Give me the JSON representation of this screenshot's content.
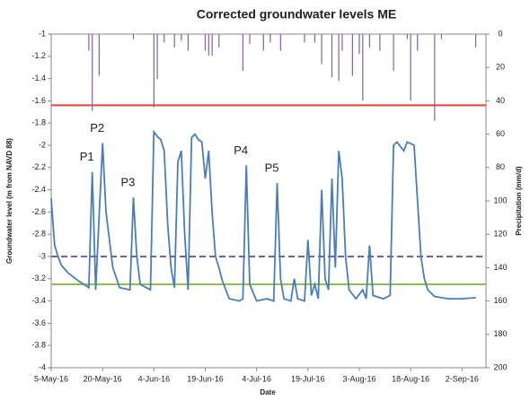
{
  "chart_data": {
    "type": "line",
    "title": "Corrected groundwater levels ME",
    "xlabel": "Date",
    "ylabel": "Groundwater level (m from NAVD 88)",
    "y2label": "Precipitation (mm/d)",
    "xlim": [
      "2016-05-05",
      "2016-09-09"
    ],
    "xticks": [
      {
        "value": "2016-05-05",
        "label": "5-May-16"
      },
      {
        "value": "2016-05-20",
        "label": "20-May-16"
      },
      {
        "value": "2016-06-04",
        "label": "4-Jun-16"
      },
      {
        "value": "2016-06-19",
        "label": "19-Jun-16"
      },
      {
        "value": "2016-07-04",
        "label": "4-Jul-16"
      },
      {
        "value": "2016-07-19",
        "label": "19-Jul-16"
      },
      {
        "value": "2016-08-03",
        "label": "3-Aug-16"
      },
      {
        "value": "2016-08-18",
        "label": "18-Aug-16"
      },
      {
        "value": "2016-09-02",
        "label": "2-Sep-16"
      }
    ],
    "ylim": [
      -4,
      -1
    ],
    "yticks": [
      -1,
      -1.2,
      -1.4,
      -1.6,
      -1.8,
      -2,
      -2.2,
      -2.4,
      -2.6,
      -2.8,
      -3,
      -3.2,
      -3.4,
      -3.6,
      -3.8,
      -4
    ],
    "y2lim": [
      0,
      200
    ],
    "y2ticks": [
      0,
      20,
      40,
      60,
      80,
      100,
      120,
      140,
      160,
      180,
      200
    ],
    "y2_inverted": true,
    "series": [
      {
        "type": "line",
        "color": "#4a7ebb",
        "x": [
          "2016-05-05",
          "2016-05-06",
          "2016-05-07",
          "2016-05-08",
          "2016-05-10",
          "2016-05-13",
          "2016-05-16",
          "2016-05-17",
          "2016-05-18",
          "2016-05-20",
          "2016-05-21",
          "2016-05-23",
          "2016-05-25",
          "2016-05-28",
          "2016-05-29",
          "2016-05-30",
          "2016-05-31",
          "2016-06-03",
          "2016-06-04",
          "2016-06-05",
          "2016-06-06",
          "2016-06-07",
          "2016-06-08",
          "2016-06-09",
          "2016-06-10",
          "2016-06-11",
          "2016-06-12",
          "2016-06-13",
          "2016-06-14",
          "2016-06-15",
          "2016-06-16",
          "2016-06-17",
          "2016-06-18",
          "2016-06-19",
          "2016-06-20",
          "2016-06-21",
          "2016-06-22",
          "2016-06-23",
          "2016-06-24",
          "2016-06-26",
          "2016-06-29",
          "2016-06-30",
          "2016-07-01",
          "2016-07-02",
          "2016-07-04",
          "2016-07-07",
          "2016-07-09",
          "2016-07-10",
          "2016-07-11",
          "2016-07-12",
          "2016-07-14",
          "2016-07-15",
          "2016-07-16",
          "2016-07-18",
          "2016-07-19",
          "2016-07-20",
          "2016-07-21",
          "2016-07-22",
          "2016-07-23",
          "2016-07-24",
          "2016-07-25",
          "2016-07-26",
          "2016-07-27",
          "2016-07-28",
          "2016-07-29",
          "2016-07-30",
          "2016-07-31",
          "2016-08-02",
          "2016-08-04",
          "2016-08-05",
          "2016-08-06",
          "2016-08-07",
          "2016-08-10",
          "2016-08-12",
          "2016-08-13",
          "2016-08-14",
          "2016-08-16",
          "2016-08-17",
          "2016-08-19",
          "2016-08-20",
          "2016-08-21",
          "2016-08-22",
          "2016-08-23",
          "2016-08-25",
          "2016-08-29",
          "2016-09-02",
          "2016-09-06"
        ],
        "values": [
          -2.48,
          -2.9,
          -3.0,
          -3.08,
          -3.15,
          -3.22,
          -3.28,
          -2.24,
          -3.3,
          -1.98,
          -2.6,
          -3.1,
          -3.28,
          -3.3,
          -2.47,
          -3.0,
          -3.25,
          -3.3,
          -1.88,
          -1.92,
          -1.95,
          -2.05,
          -2.7,
          -3.1,
          -3.28,
          -2.15,
          -2.05,
          -2.8,
          -3.3,
          -1.93,
          -1.9,
          -1.95,
          -1.97,
          -2.3,
          -2.05,
          -2.6,
          -3.0,
          -3.1,
          -3.22,
          -3.38,
          -3.4,
          -3.38,
          -2.18,
          -3.25,
          -3.4,
          -3.38,
          -3.4,
          -2.34,
          -3.2,
          -3.38,
          -3.4,
          -3.2,
          -3.38,
          -3.4,
          -2.85,
          -3.35,
          -3.25,
          -3.38,
          -2.4,
          -3.2,
          -3.3,
          -2.3,
          -3.1,
          -2.05,
          -2.3,
          -3.0,
          -3.3,
          -3.38,
          -3.3,
          -3.38,
          -2.9,
          -3.35,
          -3.38,
          -3.35,
          -2.0,
          -1.97,
          -2.05,
          -1.97,
          -2.0,
          -2.5,
          -3.0,
          -3.2,
          -3.3,
          -3.36,
          -3.38,
          -3.38,
          -3.37
        ]
      },
      {
        "type": "bar",
        "axis": "y2",
        "color": "#8064a2",
        "x": [
          "2016-05-16",
          "2016-05-17",
          "2016-05-19",
          "2016-05-29",
          "2016-06-04",
          "2016-06-05",
          "2016-06-07",
          "2016-06-10",
          "2016-06-12",
          "2016-06-14",
          "2016-06-19",
          "2016-06-20",
          "2016-06-21",
          "2016-06-23",
          "2016-06-30",
          "2016-07-02",
          "2016-07-06",
          "2016-07-08",
          "2016-07-11",
          "2016-07-18",
          "2016-07-21",
          "2016-07-23",
          "2016-07-26",
          "2016-07-28",
          "2016-07-29",
          "2016-08-01",
          "2016-08-03",
          "2016-08-04",
          "2016-08-06",
          "2016-08-09",
          "2016-08-13",
          "2016-08-17",
          "2016-08-18",
          "2016-08-20",
          "2016-08-25",
          "2016-08-27",
          "2016-09-06"
        ],
        "values": [
          10,
          46,
          25,
          3,
          44,
          27,
          5,
          8,
          4,
          10,
          10,
          13,
          13,
          8,
          22,
          6,
          10,
          5,
          10,
          5,
          5,
          18,
          26,
          28,
          10,
          25,
          12,
          40,
          8,
          10,
          22,
          3,
          40,
          10,
          52,
          3,
          8
        ]
      }
    ],
    "reference_lines": [
      {
        "value": -1.64,
        "color": "#e8413c",
        "dash": false
      },
      {
        "value": -3.0,
        "color": "#7b5ea7",
        "dash": true
      },
      {
        "value": -3.25,
        "color": "#92c050",
        "dash": false
      }
    ],
    "annotations": [
      {
        "text": "P1",
        "x": "2016-05-17",
        "y": -2.24
      },
      {
        "text": "P2",
        "x": "2016-05-20",
        "y": -1.98
      },
      {
        "text": "P3",
        "x": "2016-05-29",
        "y": -2.47
      },
      {
        "text": "P4",
        "x": "2016-07-01",
        "y": -2.18
      },
      {
        "text": "P5",
        "x": "2016-07-10",
        "y": -2.34
      }
    ]
  }
}
